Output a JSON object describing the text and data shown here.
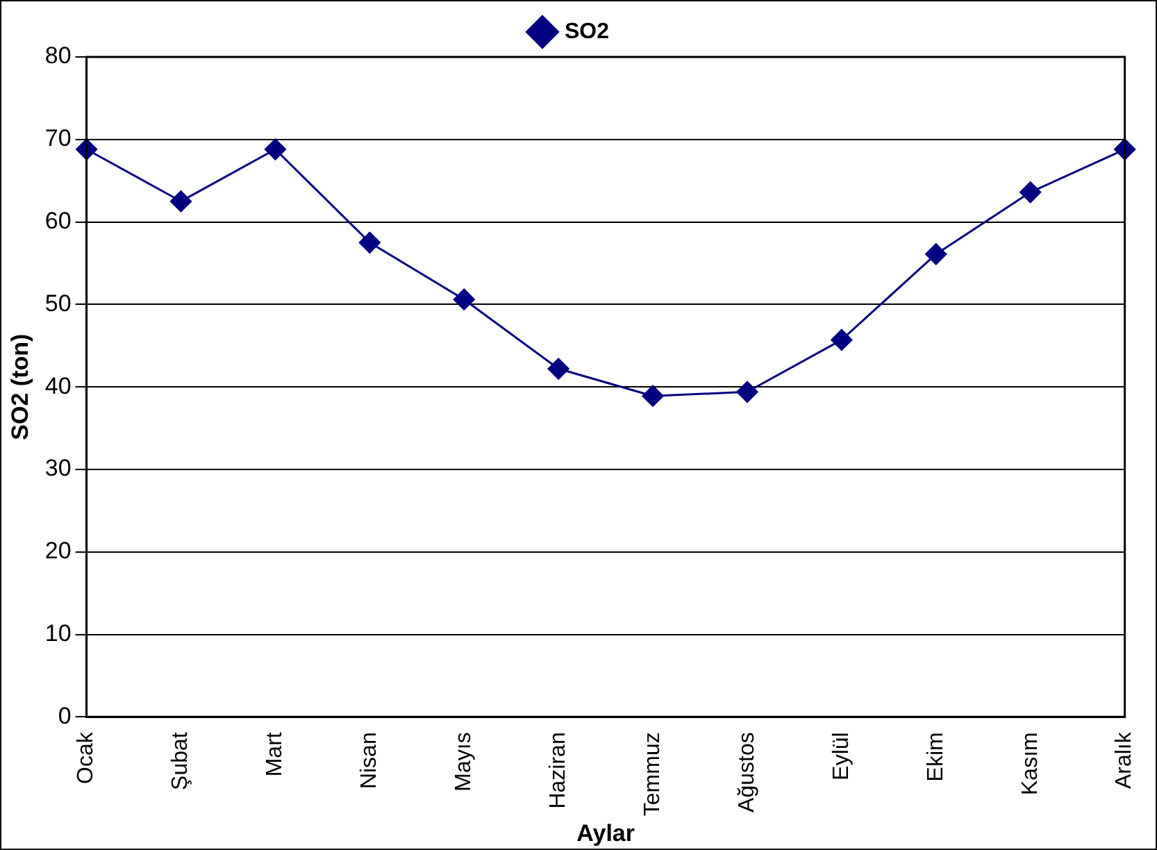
{
  "chart_data": {
    "type": "line",
    "xlabel": "Aylar",
    "ylabel": "SO2 (ton)",
    "categories": [
      "Ocak",
      "Şubat",
      "Mart",
      "Nisan",
      "Mayıs",
      "Haziran",
      "Temmuz",
      "Ağustos",
      "Eylül",
      "Ekim",
      "Kasım",
      "Aralık"
    ],
    "series": [
      {
        "name": "SO2",
        "color": "#000080",
        "values": [
          68.8,
          62.5,
          68.8,
          57.5,
          50.6,
          42.2,
          38.9,
          39.4,
          45.7,
          56.1,
          63.6,
          68.8
        ]
      }
    ],
    "ylim": [
      0,
      80
    ],
    "yticks": [
      0,
      10,
      20,
      30,
      40,
      50,
      60,
      70,
      80
    ],
    "grid": "y",
    "legend": "top",
    "marker": "diamond",
    "line_style": "solid"
  }
}
